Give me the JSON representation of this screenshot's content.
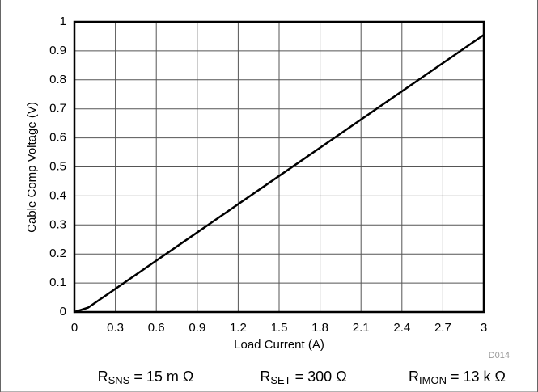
{
  "chart_data": {
    "type": "line",
    "x_label": "Load Current (A)",
    "y_label": "Cable Comp Voltage (V)",
    "x": [
      0,
      0.1,
      3
    ],
    "series": [
      {
        "color": "#000000",
        "values": [
          0,
          0.015,
          0.955
        ]
      }
    ],
    "xlim": [
      0,
      3
    ],
    "xticks": [
      0,
      0.3,
      0.6,
      0.9,
      1.2,
      1.5,
      1.8,
      2.1,
      2.4,
      2.7,
      3
    ],
    "ylim": [
      0,
      1
    ],
    "yticks": [
      0,
      0.1,
      0.2,
      0.3,
      0.4,
      0.5,
      0.6,
      0.7,
      0.8,
      0.9,
      1
    ],
    "grid": true,
    "figure_id": "D014",
    "annotations": [
      {
        "base": "R",
        "sub": "SNS",
        "rest": " = 15 m Ω"
      },
      {
        "base": "R",
        "sub": "SET",
        "rest": " = 300  Ω"
      },
      {
        "base": "R",
        "sub": "IMON",
        "rest": " = 13 k Ω"
      }
    ]
  }
}
